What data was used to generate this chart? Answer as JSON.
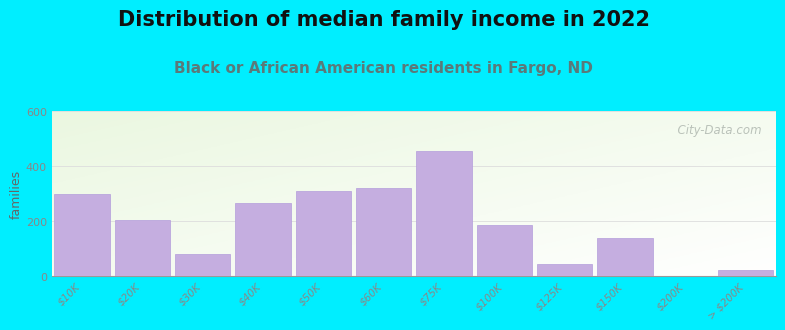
{
  "title": "Distribution of median family income in 2022",
  "subtitle": "Black or African American residents in Fargo, ND",
  "categories": [
    "$10K",
    "$20K",
    "$30K",
    "$40K",
    "$50K",
    "$60K",
    "$75K",
    "$100K",
    "$125K",
    "$150K",
    "$200K",
    "> $200K"
  ],
  "values": [
    300,
    205,
    80,
    265,
    310,
    320,
    455,
    185,
    45,
    140,
    0,
    22
  ],
  "bar_color": "#c5aee0",
  "bar_edge_color": "#b39ddb",
  "outer_bg": "#00eeff",
  "ylabel": "families",
  "ylim": [
    0,
    600
  ],
  "yticks": [
    0,
    200,
    400,
    600
  ],
  "title_fontsize": 15,
  "subtitle_fontsize": 11,
  "title_color": "#111111",
  "subtitle_color": "#5a7a7a",
  "watermark_text": "  City-Data.com",
  "grid_color": "#dddddd",
  "tick_label_color": "#888888",
  "ylabel_color": "#666666"
}
